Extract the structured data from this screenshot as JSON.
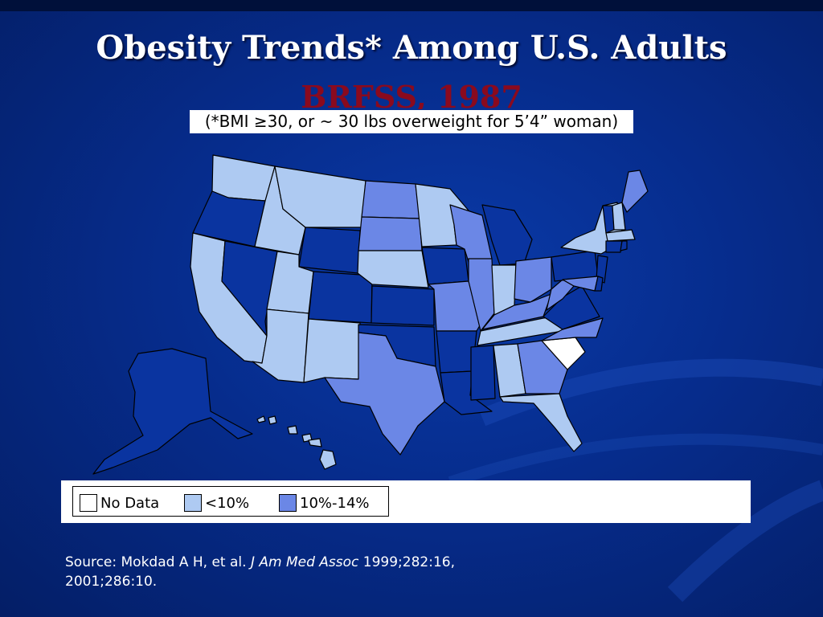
{
  "slide": {
    "title": "Obesity Trends* Among U.S. Adults",
    "subtitle": "BRFSS, 1987",
    "note": "(*BMI ≥30, or ~ 30 lbs overweight for 5’4” woman)"
  },
  "colors": {
    "no_data": "#ffffff",
    "lt10": "#aecaf2",
    "10to14": "#6b87e6",
    "dark": "#0a34a0",
    "background": "#062c8c"
  },
  "legend": {
    "items": [
      {
        "label": "No Data",
        "color": "#ffffff"
      },
      {
        "label": "<10%",
        "color": "#aecaf2"
      },
      {
        "label": "10%-14%",
        "color": "#6b87e6"
      }
    ]
  },
  "source": {
    "prefix": "Source: Mokdad A H, et al. ",
    "journal": "J Am Med Assoc",
    "suffix": " 1999;282:16,",
    "line2": "2001;286:10."
  }
}
